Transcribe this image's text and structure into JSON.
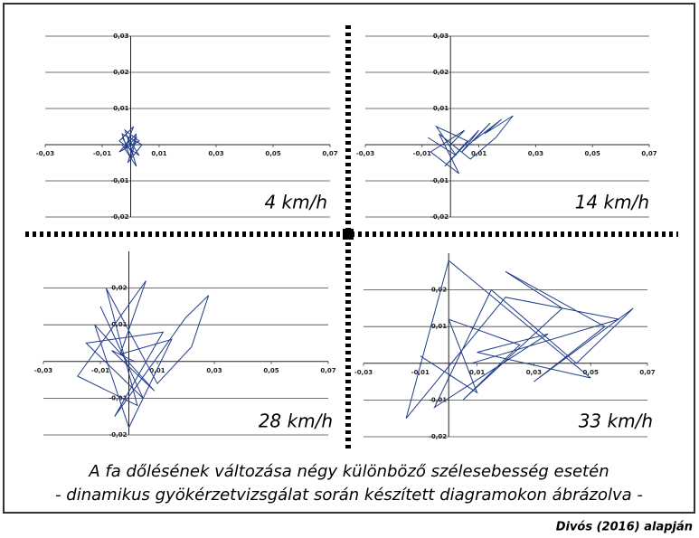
{
  "chart_data": [
    {
      "type": "line",
      "title": "4 km/h",
      "xlim": [
        -0.03,
        0.07
      ],
      "ylim": [
        -0.02,
        0.03
      ],
      "xticks": [
        {
          "value": -0.03,
          "label": "-0,03"
        },
        {
          "value": -0.01,
          "label": "-0,01"
        },
        {
          "value": 0.01,
          "label": "0,01"
        },
        {
          "value": 0.03,
          "label": "0,03"
        },
        {
          "value": 0.05,
          "label": "0,05"
        },
        {
          "value": 0.07,
          "label": "0,07"
        }
      ],
      "yticks": [
        {
          "value": 0.03,
          "label": "0,03"
        },
        {
          "value": 0.02,
          "label": "0,02"
        },
        {
          "value": 0.01,
          "label": "0,01"
        },
        {
          "value": -0.01,
          "label": "-0,01"
        },
        {
          "value": -0.02,
          "label": "-0,02"
        }
      ],
      "grid": true,
      "series": [
        {
          "color": "#1f3c88",
          "x": [
            -0.003,
            0.001,
            -0.002,
            0.003,
            -0.004,
            0.002,
            -0.001,
            0.004,
            -0.003,
            0.0,
            0.002,
            -0.002,
            0.001,
            -0.004,
            0.003,
            -0.001,
            0.002,
            -0.003
          ],
          "values": [
            0.002,
            -0.003,
            0.004,
            0.001,
            -0.002,
            0.003,
            -0.005,
            0.0,
            0.003,
            -0.004,
            0.002,
            -0.001,
            0.005,
            0.001,
            -0.003,
            0.002,
            -0.006,
            0.0
          ]
        }
      ]
    },
    {
      "type": "line",
      "title": "14 km/h",
      "xlim": [
        -0.03,
        0.07
      ],
      "ylim": [
        -0.02,
        0.03
      ],
      "xticks": [
        {
          "value": -0.03,
          "label": "-0,03"
        },
        {
          "value": -0.01,
          "label": "-0,01"
        },
        {
          "value": 0.01,
          "label": "0,01"
        },
        {
          "value": 0.03,
          "label": "0,03"
        },
        {
          "value": 0.05,
          "label": "0,05"
        },
        {
          "value": 0.07,
          "label": "0,07"
        }
      ],
      "yticks": [
        {
          "value": 0.03,
          "label": "0,03"
        },
        {
          "value": 0.02,
          "label": "0,02"
        },
        {
          "value": 0.01,
          "label": "0,01"
        },
        {
          "value": -0.01,
          "label": "-0,01"
        },
        {
          "value": -0.02,
          "label": "-0,02"
        }
      ],
      "grid": true,
      "series": [
        {
          "color": "#1f3c88",
          "x": [
            -0.008,
            0.002,
            -0.005,
            0.006,
            -0.002,
            0.01,
            0.004,
            0.014,
            0.008,
            0.018,
            0.012,
            0.022,
            0.016,
            0.007,
            -0.004,
            0.003,
            -0.007,
            0.005,
            0.0
          ],
          "values": [
            0.002,
            -0.003,
            0.005,
            0.001,
            -0.006,
            0.004,
            -0.002,
            0.006,
            0.001,
            0.007,
            0.003,
            0.008,
            0.002,
            -0.004,
            0.003,
            -0.008,
            -0.002,
            0.004,
            0.0
          ]
        }
      ]
    },
    {
      "type": "line",
      "title": "28 km/h",
      "xlim": [
        -0.03,
        0.07
      ],
      "ylim": [
        -0.02,
        0.03
      ],
      "xticks": [
        {
          "value": -0.03,
          "label": "-0,03"
        },
        {
          "value": -0.01,
          "label": "-0,01"
        },
        {
          "value": 0.01,
          "label": "0,01"
        },
        {
          "value": 0.03,
          "label": "0,03"
        },
        {
          "value": 0.05,
          "label": "0,05"
        },
        {
          "value": 0.07,
          "label": "0,07"
        }
      ],
      "yticks": [
        {
          "value": 0.02,
          "label": "0,02"
        },
        {
          "value": 0.01,
          "label": "0,01"
        },
        {
          "value": -0.01,
          "label": "-0,01"
        },
        {
          "value": -0.02,
          "label": "-0,02"
        }
      ],
      "grid": true,
      "series": [
        {
          "color": "#1f3c88",
          "x": [
            -0.01,
            0.005,
            -0.015,
            0.012,
            -0.005,
            0.02,
            0.028,
            0.022,
            0.01,
            -0.008,
            0.003,
            -0.018,
            0.006,
            -0.003,
            0.015,
            0.0,
            -0.012,
            0.009,
            -0.006,
            0.002
          ],
          "values": [
            0.015,
            -0.01,
            0.005,
            0.008,
            -0.015,
            0.012,
            0.018,
            0.004,
            -0.006,
            0.02,
            -0.012,
            -0.004,
            0.022,
            0.002,
            0.006,
            -0.018,
            0.01,
            -0.008,
            0.003,
            0.0
          ]
        }
      ]
    },
    {
      "type": "line",
      "title": "33 km/h",
      "xlim": [
        -0.03,
        0.07
      ],
      "ylim": [
        -0.02,
        0.03
      ],
      "xticks": [
        {
          "value": -0.03,
          "label": "-0,03"
        },
        {
          "value": -0.01,
          "label": "-0,01"
        },
        {
          "value": 0.01,
          "label": "0,01"
        },
        {
          "value": 0.03,
          "label": "0,03"
        },
        {
          "value": 0.05,
          "label": "0,05"
        },
        {
          "value": 0.07,
          "label": "0,07"
        }
      ],
      "yticks": [
        {
          "value": 0.02,
          "label": "0,02"
        },
        {
          "value": 0.01,
          "label": "0,01"
        },
        {
          "value": -0.01,
          "label": "-0,01"
        },
        {
          "value": -0.02,
          "label": "-0,02"
        }
      ],
      "grid": true,
      "series": [
        {
          "color": "#1f3c88",
          "x": [
            -0.01,
            0.01,
            0.0,
            0.025,
            0.005,
            0.04,
            0.02,
            0.055,
            0.03,
            0.065,
            0.045,
            0.015,
            -0.005,
            0.035,
            0.01,
            0.05,
            0.0,
            -0.015,
            0.02,
            0.06,
            0.008
          ],
          "values": [
            0.002,
            -0.008,
            0.012,
            0.005,
            -0.01,
            0.015,
            0.025,
            0.01,
            -0.005,
            0.015,
            0.0,
            0.02,
            -0.012,
            0.008,
            0.003,
            -0.004,
            0.028,
            -0.015,
            0.018,
            0.012,
            0.0
          ]
        }
      ]
    }
  ],
  "caption_lines": [
    "A fa dőlésének változása négy különböző szélesebesség esetén",
    "- dinamikus gyökérzetvizsgálat során készített diagramokon ábrázolva -"
  ],
  "credit": "Divós (2016) alapján"
}
